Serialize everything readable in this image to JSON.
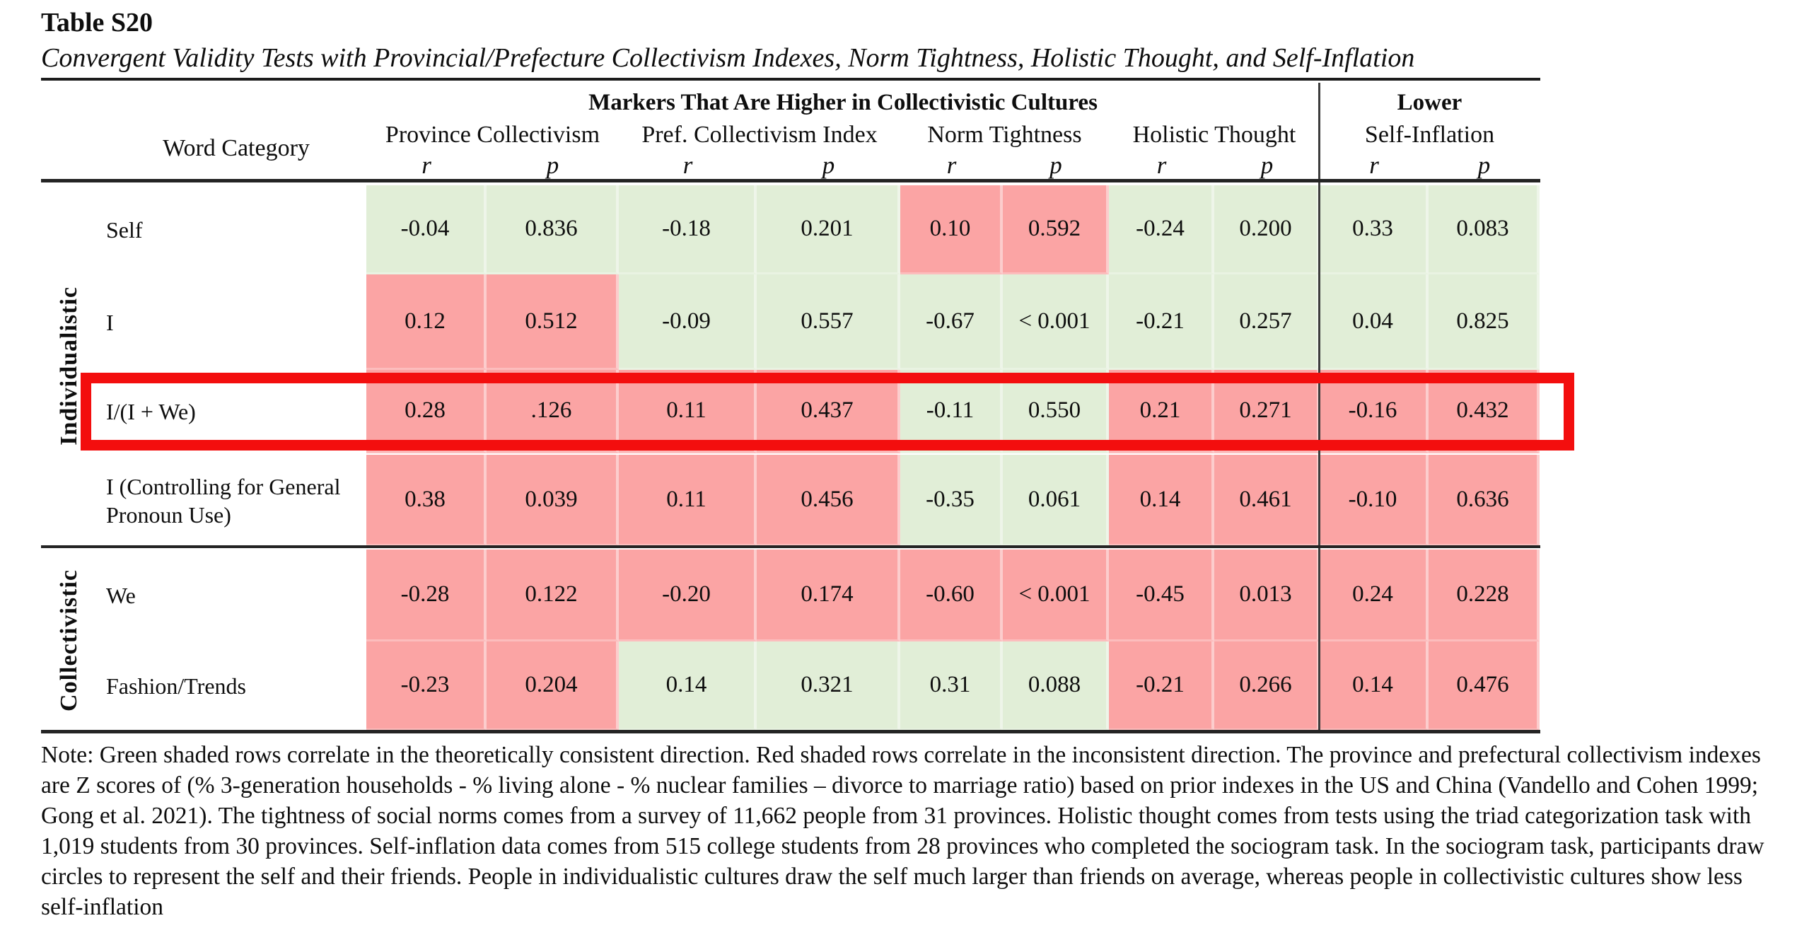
{
  "title": "Table S20",
  "subtitle": "Convergent Validity Tests with Provincial/Prefecture Collectivism Indexes, Norm Tightness, Holistic Thought, and Self-Inflation",
  "header": {
    "markers_higher": "Markers That Are Higher in Collectivistic Cultures",
    "lower": "Lower",
    "word_category": "Word Category",
    "measures": [
      "Province Collectivism",
      "Pref. Collectivism Index",
      "Norm Tightness",
      "Holistic Thought",
      "Self-Inflation"
    ],
    "stat_r": "r",
    "stat_p": "p"
  },
  "colors": {
    "consistent_green": "#e1eed7",
    "inconsistent_pink": "#fba4a4",
    "highlight_red": "#f30e0e"
  },
  "groups": [
    {
      "label": "Individualistic",
      "rows": [
        {
          "label": "Self",
          "highlight": false,
          "cells": [
            {
              "r": "-0.04",
              "p": "0.836",
              "shade": "green"
            },
            {
              "r": "-0.18",
              "p": "0.201",
              "shade": "green"
            },
            {
              "r": "0.10",
              "p": "0.592",
              "shade": "red"
            },
            {
              "r": "-0.24",
              "p": "0.200",
              "shade": "green"
            },
            {
              "r": "0.33",
              "p": "0.083",
              "shade": "green"
            }
          ]
        },
        {
          "label": "I",
          "highlight": false,
          "cells": [
            {
              "r": "0.12",
              "p": "0.512",
              "shade": "red"
            },
            {
              "r": "-0.09",
              "p": "0.557",
              "shade": "green"
            },
            {
              "r": "-0.67",
              "p": "< 0.001",
              "shade": "green"
            },
            {
              "r": "-0.21",
              "p": "0.257",
              "shade": "green"
            },
            {
              "r": "0.04",
              "p": "0.825",
              "shade": "green"
            }
          ]
        },
        {
          "label": "I/(I + We)",
          "highlight": true,
          "cells": [
            {
              "r": "0.28",
              "p": ".126",
              "shade": "red"
            },
            {
              "r": "0.11",
              "p": "0.437",
              "shade": "red"
            },
            {
              "r": "-0.11",
              "p": "0.550",
              "shade": "green"
            },
            {
              "r": "0.21",
              "p": "0.271",
              "shade": "red"
            },
            {
              "r": "-0.16",
              "p": "0.432",
              "shade": "red"
            }
          ]
        },
        {
          "label": "I (Controlling for General Pronoun Use)",
          "highlight": false,
          "cells": [
            {
              "r": "0.38",
              "p": "0.039",
              "shade": "red"
            },
            {
              "r": "0.11",
              "p": "0.456",
              "shade": "red"
            },
            {
              "r": "-0.35",
              "p": "0.061",
              "shade": "green"
            },
            {
              "r": "0.14",
              "p": "0.461",
              "shade": "red"
            },
            {
              "r": "-0.10",
              "p": "0.636",
              "shade": "red"
            }
          ]
        }
      ]
    },
    {
      "label": "Collectivistic",
      "rows": [
        {
          "label": "We",
          "highlight": false,
          "cells": [
            {
              "r": "-0.28",
              "p": "0.122",
              "shade": "red"
            },
            {
              "r": "-0.20",
              "p": "0.174",
              "shade": "red"
            },
            {
              "r": "-0.60",
              "p": "< 0.001",
              "shade": "red"
            },
            {
              "r": "-0.45",
              "p": "0.013",
              "shade": "red"
            },
            {
              "r": "0.24",
              "p": "0.228",
              "shade": "red"
            }
          ]
        },
        {
          "label": "Fashion/Trends",
          "highlight": false,
          "cells": [
            {
              "r": "-0.23",
              "p": "0.204",
              "shade": "red"
            },
            {
              "r": "0.14",
              "p": "0.321",
              "shade": "green"
            },
            {
              "r": "0.31",
              "p": "0.088",
              "shade": "green"
            },
            {
              "r": "-0.21",
              "p": "0.266",
              "shade": "red"
            },
            {
              "r": "0.14",
              "p": "0.476",
              "shade": "red"
            }
          ]
        }
      ]
    }
  ],
  "note": "Note: Green shaded rows correlate in the theoretically consistent direction. Red shaded rows correlate in the inconsistent direction. The province and prefectural collectivism indexes are Z scores of (% 3-generation households - % living alone - % nuclear families – divorce to marriage ratio) based on prior indexes in the US and China (Vandello and Cohen 1999; Gong et al. 2021). The tightness of social norms comes from a survey of 11,662 people from 31 provinces. Holistic thought comes from tests using the triad categorization task with 1,019 students from 30 provinces. Self-inflation data comes from 515 college students from 28 provinces who completed the sociogram task. In the sociogram task, participants draw circles to represent the self and their friends. People in individualistic cultures draw the self much larger than friends on average, whereas people in collectivistic cultures show less self-inflation",
  "highlight": {
    "row": "I/(I + We)"
  }
}
